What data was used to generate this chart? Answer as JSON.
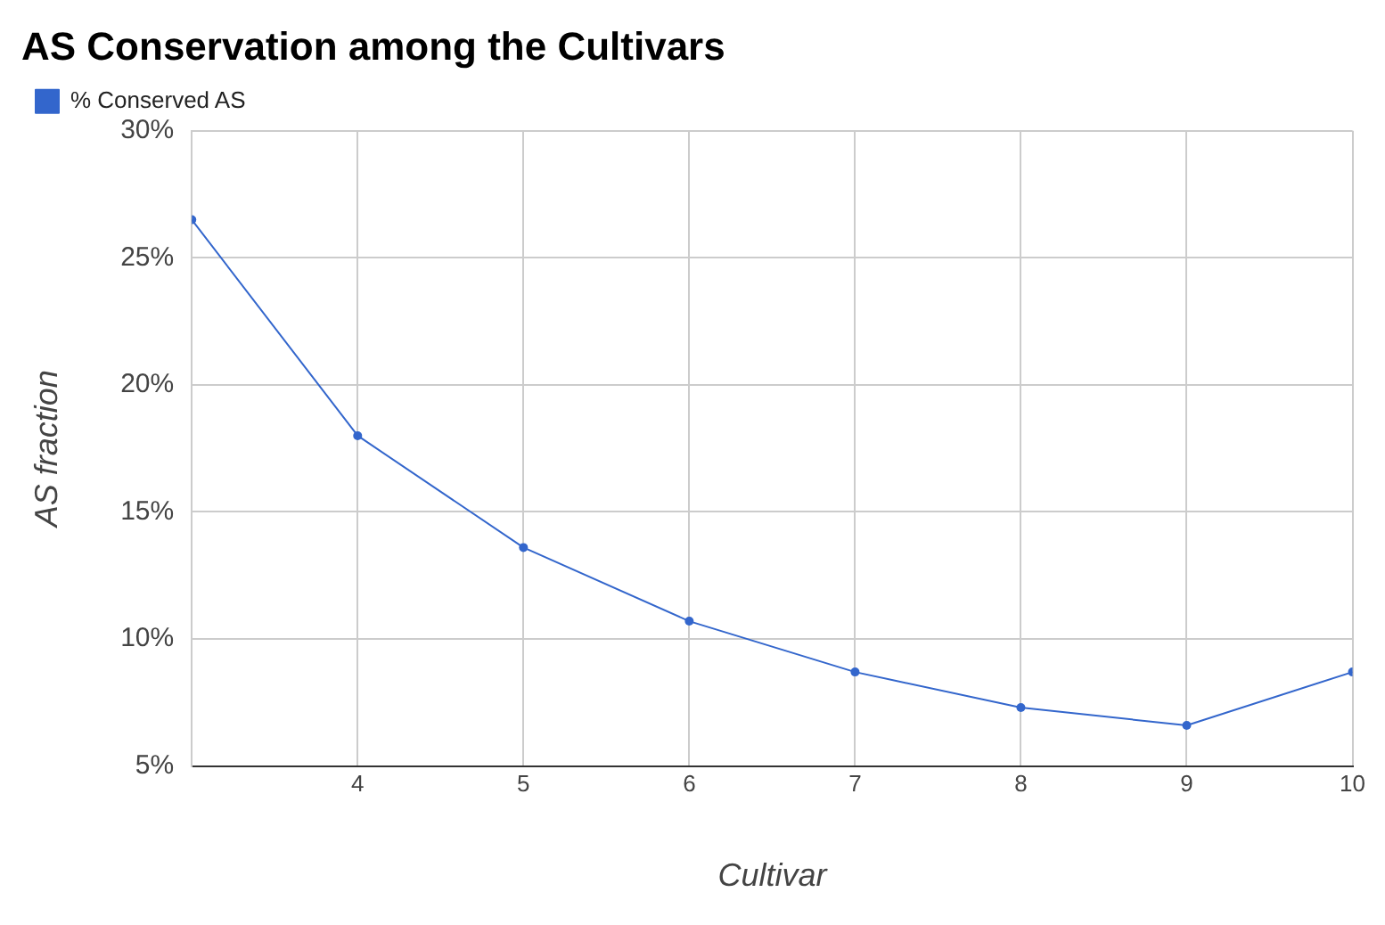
{
  "chart_data": {
    "type": "line",
    "title": "AS Conservation among the Cultivars",
    "xlabel": "Cultivar",
    "ylabel": "AS fraction",
    "x": [
      3,
      4,
      5,
      6,
      7,
      8,
      9,
      10
    ],
    "series": [
      {
        "name": "% Conserved AS",
        "color": "#3366cc",
        "values": [
          26.5,
          18.0,
          13.6,
          10.7,
          8.7,
          7.3,
          6.6,
          8.7
        ]
      }
    ],
    "xlim": [
      3,
      10
    ],
    "xticks": [
      4,
      5,
      6,
      7,
      8,
      9,
      10
    ],
    "ylim": [
      5,
      30
    ],
    "yticks": [
      {
        "value": 5,
        "label": "5%"
      },
      {
        "value": 10,
        "label": "10%"
      },
      {
        "value": 15,
        "label": "15%"
      },
      {
        "value": 20,
        "label": "20%"
      },
      {
        "value": 25,
        "label": "25%"
      },
      {
        "value": 30,
        "label": "30%"
      }
    ],
    "grid": true,
    "legend": "top left",
    "marker": "circle",
    "line_style": "solid"
  }
}
